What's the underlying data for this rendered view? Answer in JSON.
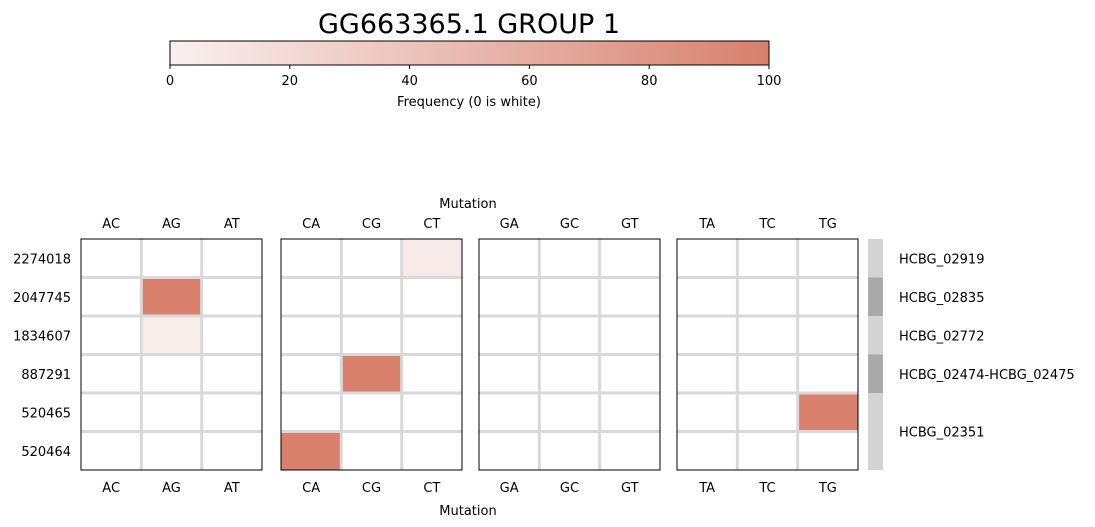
{
  "chart_data": {
    "type": "heatmap",
    "title": "GG663365.1 GROUP 1",
    "colorbar": {
      "label": "Frequency (0 is white)",
      "min": 0,
      "max": 100,
      "ticks": [
        0,
        20,
        40,
        60,
        80,
        100
      ],
      "color_low": "#faf0ee",
      "color_high": "#d8806c",
      "orientation": "horizontal",
      "placement": "top"
    },
    "xlabel": "Mutation",
    "rows": [
      "2274018",
      "2047745",
      "1834607",
      "887291",
      "520465",
      "520464"
    ],
    "panels": [
      {
        "columns": [
          "AC",
          "AG",
          "AT"
        ],
        "values": [
          [
            0,
            0,
            0
          ],
          [
            0,
            100,
            0
          ],
          [
            0,
            3,
            0
          ],
          [
            0,
            0,
            0
          ],
          [
            0,
            0,
            0
          ],
          [
            0,
            0,
            0
          ]
        ]
      },
      {
        "columns": [
          "CA",
          "CG",
          "CT"
        ],
        "values": [
          [
            0,
            0,
            5
          ],
          [
            0,
            0,
            0
          ],
          [
            0,
            0,
            0
          ],
          [
            0,
            100,
            0
          ],
          [
            0,
            0,
            0
          ],
          [
            100,
            0,
            0
          ]
        ]
      },
      {
        "columns": [
          "GA",
          "GC",
          "GT"
        ],
        "values": [
          [
            0,
            0,
            0
          ],
          [
            0,
            0,
            0
          ],
          [
            0,
            0,
            0
          ],
          [
            0,
            0,
            0
          ],
          [
            0,
            0,
            0
          ],
          [
            0,
            0,
            0
          ]
        ]
      },
      {
        "columns": [
          "TA",
          "TC",
          "TG"
        ],
        "values": [
          [
            0,
            0,
            0
          ],
          [
            0,
            0,
            0
          ],
          [
            0,
            0,
            0
          ],
          [
            0,
            0,
            0
          ],
          [
            0,
            0,
            100
          ],
          [
            0,
            0,
            0
          ]
        ]
      }
    ],
    "gene_annotations": [
      {
        "label": "HCBG_02919",
        "rows": [
          "2274018"
        ],
        "color": "#d3d3d3"
      },
      {
        "label": "HCBG_02835",
        "rows": [
          "2047745"
        ],
        "color": "#a9a9a9"
      },
      {
        "label": "HCBG_02772",
        "rows": [
          "1834607"
        ],
        "color": "#d3d3d3"
      },
      {
        "label": "HCBG_02474-HCBG_02475",
        "rows": [
          "887291"
        ],
        "color": "#a9a9a9"
      },
      {
        "label": "HCBG_02351",
        "rows": [
          "520465",
          "520464"
        ],
        "color": "#d3d3d3"
      }
    ],
    "grid": true,
    "grid_color": "#d9d9d9"
  }
}
